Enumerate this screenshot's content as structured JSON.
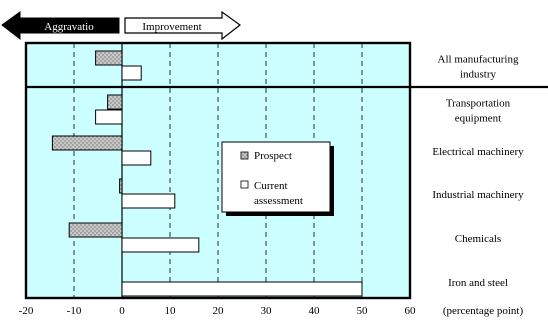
{
  "chart_data": {
    "type": "bar",
    "orientation": "horizontal",
    "categories": [
      "All manufacturing industry",
      "Transportation equipment",
      "Electrical machinery",
      "Industrial machinery",
      "Chemicals",
      "Iron and steel"
    ],
    "category_lines": [
      [
        "All manufacturing",
        "industry"
      ],
      [
        "Transportation",
        "equipment"
      ],
      [
        "Electrical machinery"
      ],
      [
        "Industrial machinery"
      ],
      [
        "Chemicals"
      ],
      [
        "Iron and steel"
      ]
    ],
    "series": [
      {
        "name": "Prospect",
        "values": [
          -5.5,
          -3,
          -14.5,
          -0.5,
          -11,
          0
        ]
      },
      {
        "name": "Current assessment",
        "values": [
          4,
          -5.5,
          6,
          11,
          16,
          50
        ]
      }
    ],
    "legend_lines": [
      [
        "Prospect"
      ],
      [
        "Current",
        "assessment"
      ]
    ],
    "xlim": [
      -20,
      60
    ],
    "xticks": [
      -20,
      -10,
      0,
      10,
      20,
      30,
      40,
      50,
      60
    ],
    "xlabel": "(percentage point)",
    "grid": "vertical-dashed",
    "legend_position": "center",
    "banners": {
      "left": "Aggravatio",
      "right": "Improvement"
    },
    "colors": {
      "plot_background": "#ccffff",
      "prospect_fill": "#c8c8c8",
      "current_fill": "#ffffff"
    }
  }
}
